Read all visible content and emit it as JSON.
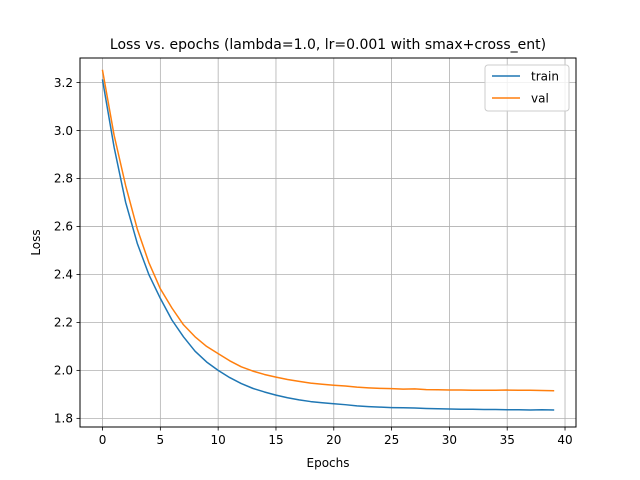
{
  "chart_data": {
    "type": "line",
    "title": "Loss vs. epochs (lambda=1.0, lr=0.001 with smax+cross_ent)",
    "xlabel": "Epochs",
    "ylabel": "Loss",
    "xlim": [
      -1.95,
      40.95
    ],
    "ylim": [
      1.764,
      3.302
    ],
    "xticks": [
      0,
      5,
      10,
      15,
      20,
      25,
      30,
      35,
      40
    ],
    "yticks": [
      1.8,
      2.0,
      2.2,
      2.4,
      2.6,
      2.8,
      3.0,
      3.2
    ],
    "ytick_labels": [
      "1.8",
      "2.0",
      "2.2",
      "2.4",
      "2.6",
      "2.8",
      "3.0",
      "3.2"
    ],
    "grid": true,
    "legend_position": "top-right",
    "x": [
      0,
      1,
      2,
      3,
      4,
      5,
      6,
      7,
      8,
      9,
      10,
      11,
      12,
      13,
      14,
      15,
      16,
      17,
      18,
      19,
      20,
      21,
      22,
      23,
      24,
      25,
      26,
      27,
      28,
      29,
      30,
      31,
      32,
      33,
      34,
      35,
      36,
      37,
      38,
      39
    ],
    "series": [
      {
        "name": "train",
        "color": "#1f77b4",
        "values": [
          3.21,
          2.93,
          2.7,
          2.53,
          2.4,
          2.3,
          2.21,
          2.14,
          2.08,
          2.035,
          2.0,
          1.97,
          1.945,
          1.925,
          1.91,
          1.897,
          1.886,
          1.877,
          1.87,
          1.865,
          1.861,
          1.857,
          1.852,
          1.849,
          1.847,
          1.845,
          1.844,
          1.843,
          1.841,
          1.84,
          1.839,
          1.838,
          1.838,
          1.837,
          1.837,
          1.836,
          1.836,
          1.835,
          1.836,
          1.835
        ]
      },
      {
        "name": "val",
        "color": "#ff7f0e",
        "values": [
          3.25,
          2.98,
          2.77,
          2.59,
          2.45,
          2.34,
          2.26,
          2.19,
          2.14,
          2.1,
          2.07,
          2.04,
          2.015,
          1.997,
          1.983,
          1.972,
          1.962,
          1.954,
          1.947,
          1.942,
          1.938,
          1.935,
          1.93,
          1.927,
          1.925,
          1.924,
          1.922,
          1.923,
          1.92,
          1.919,
          1.918,
          1.918,
          1.917,
          1.917,
          1.917,
          1.918,
          1.917,
          1.917,
          1.916,
          1.915
        ]
      }
    ]
  }
}
